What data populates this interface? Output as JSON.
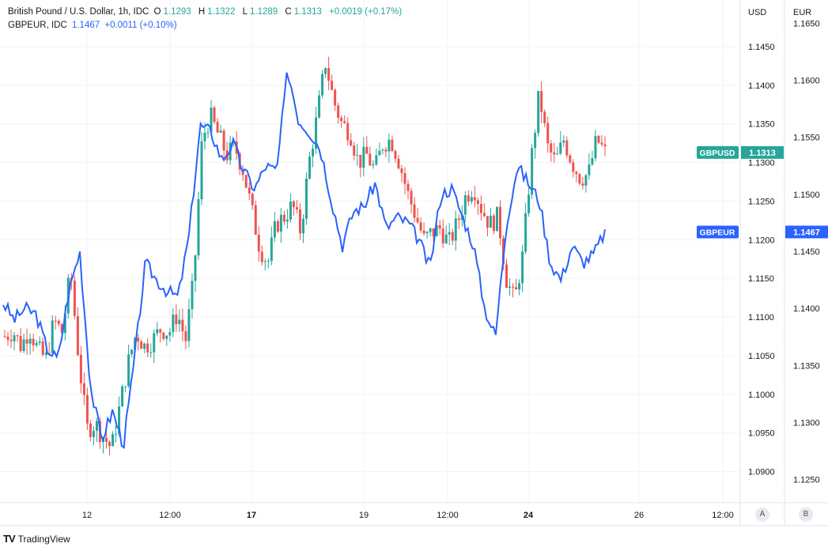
{
  "legend": {
    "main_title": "British Pound / U.S. Dollar, 1h, IDC",
    "o_label": "O",
    "o_value": "1.1293",
    "h_label": "H",
    "h_value": "1.1322",
    "l_label": "L",
    "l_value": "1.1289",
    "c_label": "C",
    "c_value": "1.1313",
    "change": "+0.0019 (+0.17%)",
    "compare_title": "GBPEUR, IDC",
    "compare_value": "1.1467",
    "compare_change": "+0.0011 (+0.10%)"
  },
  "footer": {
    "brand": "TradingView",
    "logo": "TV"
  },
  "scale_buttons": {
    "left": "A",
    "right": "B"
  },
  "colors": {
    "up": "#26a69a",
    "down": "#ef5350",
    "line": "#2962ff",
    "grid": "#f0f3fa"
  },
  "chart_data": {
    "type": "candlestick",
    "x_ticks": [
      "12",
      "12:00",
      "17",
      "19",
      "12:00",
      "24",
      "26",
      "12:00"
    ],
    "y_axis_usd": {
      "label": "USD",
      "ticks": [
        "1.1450",
        "1.1400",
        "1.1350",
        "1.1300",
        "1.1250",
        "1.1200",
        "1.1150",
        "1.1100",
        "1.1050",
        "1.1000",
        "1.0950",
        "1.0900"
      ],
      "range": [
        1.0875,
        1.1495
      ]
    },
    "y_axis_eur": {
      "label": "EUR",
      "ticks": [
        "1.1650",
        "1.1600",
        "1.1550",
        "1.1500",
        "1.1450",
        "1.1400",
        "1.1350",
        "1.1300",
        "1.1250"
      ],
      "range": [
        1.124,
        1.166
      ]
    },
    "series": [
      {
        "name": "GBPUSD",
        "axis": "USD",
        "last_value": "1.1313"
      },
      {
        "name": "GBPEUR",
        "axis": "EUR",
        "last_value": "1.1467"
      }
    ],
    "gbpusd_close_path": [
      1.1075,
      1.1082,
      1.1062,
      1.1085,
      1.1058,
      1.1045,
      1.1095,
      1.108,
      1.116,
      1.1045,
      1.0955,
      1.0962,
      1.0945,
      1.093,
      1.0985,
      1.104,
      1.108,
      1.1062,
      1.107,
      1.1085,
      1.108,
      1.1105,
      1.107,
      1.115,
      1.133,
      1.136,
      1.1335,
      1.131,
      1.132,
      1.129,
      1.124,
      1.119,
      1.117,
      1.122,
      1.123,
      1.1245,
      1.121,
      1.13,
      1.136,
      1.143,
      1.138,
      1.135,
      1.134,
      1.13,
      1.131,
      1.129,
      1.1325,
      1.133,
      1.13,
      1.126,
      1.123,
      1.12,
      1.121,
      1.1215,
      1.1195,
      1.122,
      1.1255,
      1.127,
      1.124,
      1.122,
      1.123,
      1.115,
      1.112,
      1.118,
      1.13,
      1.139,
      1.132,
      1.13,
      1.133,
      1.13,
      1.128,
      1.1285,
      1.133,
      1.1313
    ],
    "gbpeur_path": [
      1.1405,
      1.139,
      1.14,
      1.1395,
      1.1365,
      1.1355,
      1.1415,
      1.145,
      1.133,
      1.1285,
      1.131,
      1.128,
      1.1355,
      1.144,
      1.1425,
      1.1415,
      1.141,
      1.1465,
      1.156,
      1.1555,
      1.153,
      1.1545,
      1.152,
      1.1505,
      1.1525,
      1.152,
      1.161,
      1.1565,
      1.1555,
      1.154,
      1.1495,
      1.1455,
      1.1485,
      1.149,
      1.151,
      1.147,
      1.148,
      1.1475,
      1.146,
      1.1435,
      1.15,
      1.1505,
      1.148,
      1.1455,
      1.14,
      1.1375,
      1.1475,
      1.1525,
      1.151,
      1.1495,
      1.144,
      1.1425,
      1.1455,
      1.144,
      1.1448,
      1.1467
    ]
  }
}
